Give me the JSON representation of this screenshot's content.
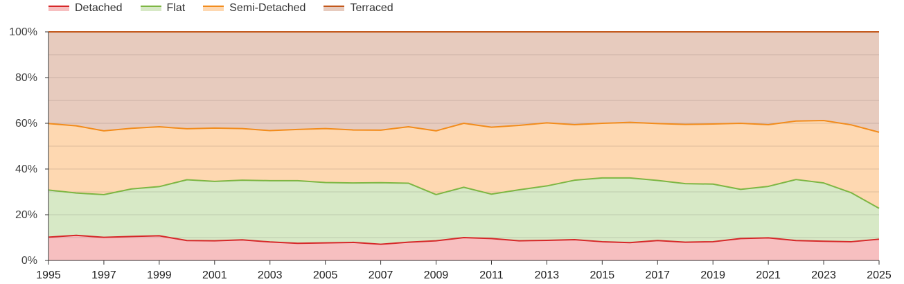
{
  "chart_data": {
    "type": "area",
    "stacked": true,
    "percent": true,
    "title": "",
    "xlabel": "",
    "ylabel": "",
    "x": [
      1995,
      1996,
      1997,
      1998,
      1999,
      2000,
      2001,
      2002,
      2003,
      2004,
      2005,
      2006,
      2007,
      2008,
      2009,
      2010,
      2011,
      2012,
      2013,
      2014,
      2015,
      2016,
      2017,
      2018,
      2019,
      2020,
      2021,
      2022,
      2023,
      2024,
      2025
    ],
    "x_ticks": [
      "1995",
      "1997",
      "1999",
      "2001",
      "2003",
      "2005",
      "2007",
      "2009",
      "2011",
      "2013",
      "2015",
      "2017",
      "2019",
      "2021",
      "2023",
      "2025"
    ],
    "y_ticks": [
      "0%",
      "20%",
      "40%",
      "60%",
      "80%",
      "100%"
    ],
    "ylim": [
      0,
      100
    ],
    "grid": true,
    "legend_position": "top-left",
    "series": [
      {
        "name": "Detached",
        "line_color": "#d62728",
        "fill_color": "#f7bfc0",
        "values": [
          10.2,
          11.0,
          10.1,
          10.5,
          10.8,
          8.7,
          8.6,
          9.0,
          8.1,
          7.5,
          7.7,
          7.9,
          7.1,
          8.0,
          8.6,
          10.0,
          9.6,
          8.6,
          8.8,
          9.1,
          8.2,
          7.8,
          8.7,
          8.0,
          8.2,
          9.6,
          9.9,
          8.7,
          8.4,
          8.2,
          9.3
        ]
      },
      {
        "name": "Flat",
        "line_color": "#7db643",
        "fill_color": "#d7e9c6",
        "values": [
          20.6,
          18.5,
          18.7,
          20.8,
          21.5,
          26.6,
          26.0,
          26.1,
          26.8,
          27.4,
          26.4,
          26.0,
          26.9,
          25.8,
          20.2,
          22.0,
          19.4,
          22.3,
          23.8,
          26.0,
          27.9,
          28.3,
          26.3,
          25.6,
          25.2,
          21.5,
          22.5,
          26.7,
          25.5,
          21.4,
          13.5
        ]
      },
      {
        "name": "Semi-Detached",
        "line_color": "#f28c1c",
        "fill_color": "#fed8b1",
        "values": [
          29.1,
          29.4,
          27.9,
          26.5,
          26.2,
          22.3,
          23.3,
          22.6,
          21.9,
          22.4,
          23.6,
          23.2,
          23.0,
          24.7,
          27.9,
          28.0,
          29.3,
          28.2,
          27.6,
          24.3,
          23.9,
          24.3,
          24.9,
          25.9,
          26.3,
          28.9,
          27.0,
          25.6,
          27.3,
          29.7,
          33.3
        ]
      },
      {
        "name": "Terraced",
        "line_color": "#c2571a",
        "fill_color": "#e7cbbe",
        "values": [
          40.1,
          41.1,
          43.3,
          42.2,
          41.5,
          42.4,
          42.1,
          42.3,
          43.2,
          42.7,
          42.3,
          42.9,
          43.0,
          41.5,
          43.3,
          40.0,
          41.7,
          40.9,
          39.8,
          40.6,
          40.0,
          39.6,
          40.1,
          40.5,
          40.3,
          40.0,
          40.6,
          39.0,
          38.8,
          40.7,
          43.9
        ]
      }
    ]
  }
}
